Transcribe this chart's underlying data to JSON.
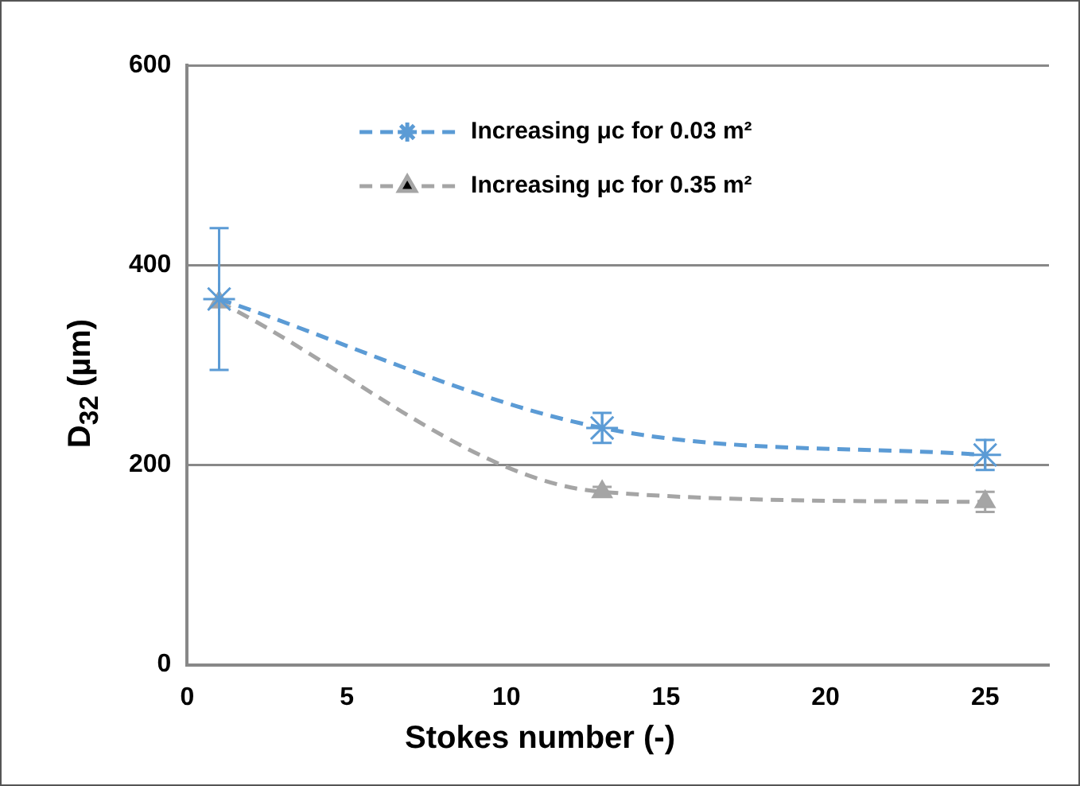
{
  "chart_data": {
    "type": "line",
    "xlabel": "Stokes number (-)",
    "ylabel": "D$_{32}$ (µm)",
    "xlim": [
      0,
      27
    ],
    "xticks": [
      0,
      5,
      10,
      15,
      20,
      25
    ],
    "ylim": [
      0,
      600
    ],
    "yticks": [
      0,
      200,
      400,
      600
    ],
    "grid": "y",
    "legend": "top",
    "line_style": "dashed",
    "series": [
      {
        "name": "Increasing μc for 0.03 m²",
        "color": "#5b9bd5",
        "marker": "cross",
        "x": [
          1,
          13,
          25
        ],
        "values": [
          366,
          237,
          210
        ],
        "errors": [
          71,
          15,
          15
        ]
      },
      {
        "name": "Increasing μc for 0.35 m²",
        "color": "#a5a5a5",
        "marker": "triangle",
        "x": [
          1,
          13,
          25
        ],
        "values": [
          363,
          173,
          163
        ],
        "errors": [
          null,
          5,
          10
        ]
      }
    ]
  }
}
